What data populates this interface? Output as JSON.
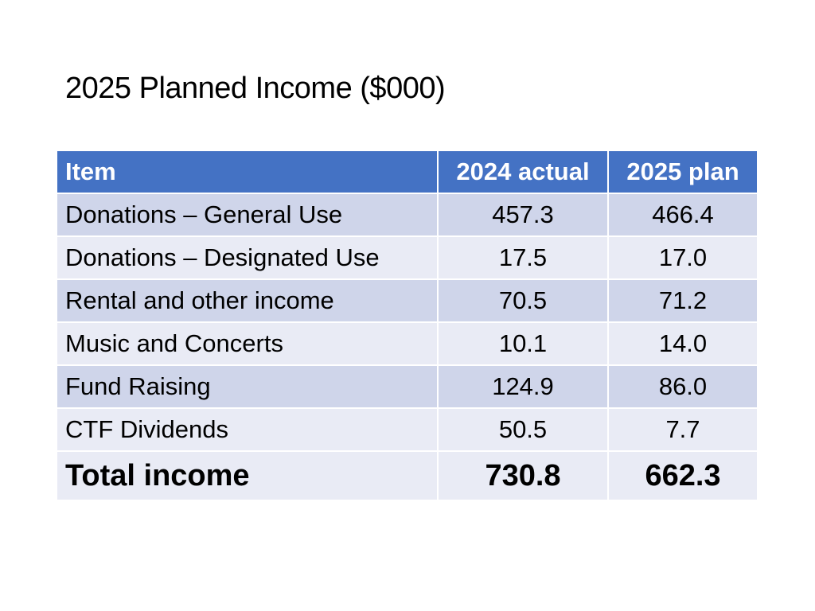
{
  "title": "2025 Planned Income ($000)",
  "table": {
    "headers": [
      "Item",
      "2024 actual",
      "2025 plan"
    ],
    "rows": [
      {
        "item": "Donations – General Use",
        "actual_2024": "457.3",
        "plan_2025": "466.4"
      },
      {
        "item": "Donations – Designated Use",
        "actual_2024": "17.5",
        "plan_2025": "17.0"
      },
      {
        "item": "Rental and other income",
        "actual_2024": "70.5",
        "plan_2025": "71.2"
      },
      {
        "item": "Music and Concerts",
        "actual_2024": "10.1",
        "plan_2025": "14.0"
      },
      {
        "item": "Fund Raising",
        "actual_2024": "124.9",
        "plan_2025": "86.0"
      },
      {
        "item": "CTF Dividends",
        "actual_2024": "50.5",
        "plan_2025": "7.7"
      }
    ],
    "total": {
      "item": "Total income",
      "actual_2024": "730.8",
      "plan_2025": "662.3"
    }
  },
  "colors": {
    "header_bg": "#4472c4",
    "row_band_dark": "#cfd5ea",
    "row_band_light": "#e9ebf5"
  }
}
